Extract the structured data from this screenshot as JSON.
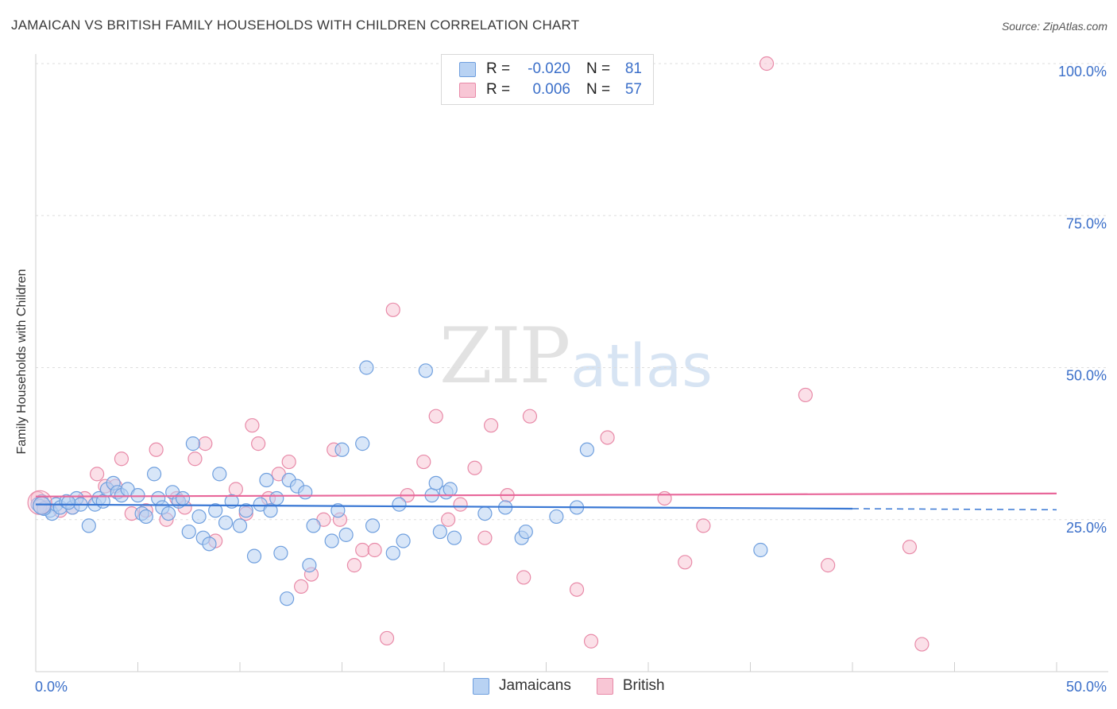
{
  "title": "JAMAICAN VS BRITISH FAMILY HOUSEHOLDS WITH CHILDREN CORRELATION CHART",
  "source": "Source: ZipAtlas.com",
  "watermark": {
    "zip": "ZIP",
    "atlas": "atlas"
  },
  "colors": {
    "jamaicans_fill": "#b8d2f3",
    "jamaicans_stroke": "#6f9fde",
    "jamaicans_line": "#3a78d4",
    "british_fill": "#f8c6d5",
    "british_stroke": "#e88aa8",
    "british_line": "#e8679a",
    "axis_text": "#3b6fc9"
  },
  "legend": {
    "rows": [
      {
        "r_label": "R =",
        "r_value": "-0.020",
        "n_label": "N =",
        "n_value": "81"
      },
      {
        "r_label": "R =",
        "r_value": "0.006",
        "n_label": "N =",
        "n_value": "57"
      }
    ]
  },
  "chart_data": {
    "type": "scatter",
    "title": "JAMAICAN VS BRITISH FAMILY HOUSEHOLDS WITH CHILDREN CORRELATION CHART",
    "xlabel": "",
    "ylabel": "Family Households with Children",
    "xlim": [
      0,
      50
    ],
    "ylim": [
      0,
      100
    ],
    "x_tick_labels": [
      "0.0%",
      "50.0%"
    ],
    "y_tick_labels": [
      "25.0%",
      "50.0%",
      "75.0%",
      "100.0%"
    ],
    "y_ticks": [
      25,
      50,
      75,
      100
    ],
    "grid": true,
    "series": [
      {
        "name": "Jamaicans",
        "r": -0.02,
        "n": 81,
        "trend": {
          "x0": 0,
          "y0": 27.5,
          "x1": 40,
          "y1": 26.8,
          "dashed_to": 50
        },
        "points": [
          [
            0.1,
            27.5
          ],
          [
            0.3,
            28
          ],
          [
            0.5,
            27
          ],
          [
            0.7,
            26.5
          ],
          [
            0.8,
            26
          ],
          [
            1.0,
            27.5
          ],
          [
            1.2,
            27
          ],
          [
            1.5,
            28
          ],
          [
            1.8,
            27
          ],
          [
            2.0,
            28.5
          ],
          [
            2.2,
            27.5
          ],
          [
            2.6,
            24
          ],
          [
            2.9,
            27.5
          ],
          [
            3.1,
            28.5
          ],
          [
            3.3,
            28
          ],
          [
            3.5,
            30
          ],
          [
            3.8,
            31
          ],
          [
            4.0,
            29.5
          ],
          [
            4.2,
            29
          ],
          [
            4.5,
            30
          ],
          [
            5.0,
            29
          ],
          [
            5.2,
            26
          ],
          [
            5.4,
            25.5
          ],
          [
            5.8,
            32.5
          ],
          [
            6.0,
            28.5
          ],
          [
            6.2,
            27
          ],
          [
            6.5,
            26
          ],
          [
            6.7,
            29.5
          ],
          [
            7.0,
            28
          ],
          [
            7.2,
            28.5
          ],
          [
            7.5,
            23
          ],
          [
            7.7,
            37.5
          ],
          [
            8.0,
            25.5
          ],
          [
            8.2,
            22
          ],
          [
            8.5,
            21
          ],
          [
            8.8,
            26.5
          ],
          [
            9.0,
            32.5
          ],
          [
            9.3,
            24.5
          ],
          [
            9.6,
            28
          ],
          [
            10.0,
            24
          ],
          [
            10.3,
            26.5
          ],
          [
            10.7,
            19
          ],
          [
            11.0,
            27.5
          ],
          [
            11.3,
            31.5
          ],
          [
            11.5,
            26.5
          ],
          [
            11.8,
            28.5
          ],
          [
            12.0,
            19.5
          ],
          [
            12.4,
            31.5
          ],
          [
            12.8,
            30.5
          ],
          [
            13.2,
            29.5
          ],
          [
            13.4,
            17.5
          ],
          [
            13.6,
            24
          ],
          [
            14.5,
            21.5
          ],
          [
            14.8,
            26.5
          ],
          [
            15.0,
            36.5
          ],
          [
            15.2,
            22.5
          ],
          [
            16.0,
            37.5
          ],
          [
            16.2,
            50
          ],
          [
            16.5,
            24
          ],
          [
            17.5,
            19.5
          ],
          [
            17.8,
            27.5
          ],
          [
            18.0,
            21.5
          ],
          [
            19.1,
            49.5
          ],
          [
            19.4,
            29
          ],
          [
            19.6,
            31
          ],
          [
            19.8,
            23
          ],
          [
            20.1,
            29.5
          ],
          [
            20.3,
            30
          ],
          [
            20.5,
            22
          ],
          [
            22.0,
            26
          ],
          [
            23.0,
            27
          ],
          [
            23.8,
            22
          ],
          [
            24.0,
            23
          ],
          [
            25.5,
            25.5
          ],
          [
            26.5,
            27
          ],
          [
            27.0,
            36.5
          ],
          [
            35.5,
            20
          ],
          [
            12.3,
            12
          ],
          [
            0.2,
            27.2
          ],
          [
            0.4,
            26.8
          ],
          [
            1.6,
            27.8
          ]
        ]
      },
      {
        "name": "British",
        "r": 0.006,
        "n": 57,
        "trend": {
          "x0": 0,
          "y0": 28.8,
          "x1": 50,
          "y1": 29.3
        },
        "points": [
          [
            0.1,
            28.5
          ],
          [
            0.5,
            27
          ],
          [
            1.2,
            26.5
          ],
          [
            1.8,
            27
          ],
          [
            2.4,
            28.5
          ],
          [
            3.0,
            32.5
          ],
          [
            3.4,
            30.5
          ],
          [
            3.9,
            30.5
          ],
          [
            4.2,
            35
          ],
          [
            4.7,
            26
          ],
          [
            5.4,
            26.5
          ],
          [
            5.9,
            36.5
          ],
          [
            6.4,
            25
          ],
          [
            6.9,
            28.5
          ],
          [
            7.3,
            27
          ],
          [
            7.8,
            35
          ],
          [
            8.3,
            37.5
          ],
          [
            8.8,
            21.5
          ],
          [
            9.8,
            30
          ],
          [
            10.3,
            26
          ],
          [
            10.6,
            40.5
          ],
          [
            10.9,
            37.5
          ],
          [
            11.4,
            28.5
          ],
          [
            11.9,
            32.5
          ],
          [
            12.4,
            34.5
          ],
          [
            13.0,
            14
          ],
          [
            13.5,
            16
          ],
          [
            14.1,
            25
          ],
          [
            14.6,
            36.5
          ],
          [
            14.9,
            25
          ],
          [
            15.6,
            17.5
          ],
          [
            16.0,
            20
          ],
          [
            16.6,
            20
          ],
          [
            17.2,
            5.5
          ],
          [
            17.5,
            59.5
          ],
          [
            18.2,
            29
          ],
          [
            19.0,
            34.5
          ],
          [
            19.6,
            42
          ],
          [
            20.2,
            25
          ],
          [
            20.8,
            27.5
          ],
          [
            21.5,
            33.5
          ],
          [
            22.0,
            22
          ],
          [
            22.3,
            40.5
          ],
          [
            23.1,
            29
          ],
          [
            23.9,
            15.5
          ],
          [
            24.2,
            42
          ],
          [
            26.5,
            13.5
          ],
          [
            27.2,
            5
          ],
          [
            28.0,
            38.5
          ],
          [
            30.8,
            28.5
          ],
          [
            31.8,
            18
          ],
          [
            32.7,
            24
          ],
          [
            35.8,
            100
          ],
          [
            37.7,
            45.5
          ],
          [
            38.8,
            17.5
          ],
          [
            42.8,
            20.5
          ],
          [
            43.4,
            4.5
          ]
        ]
      }
    ]
  }
}
